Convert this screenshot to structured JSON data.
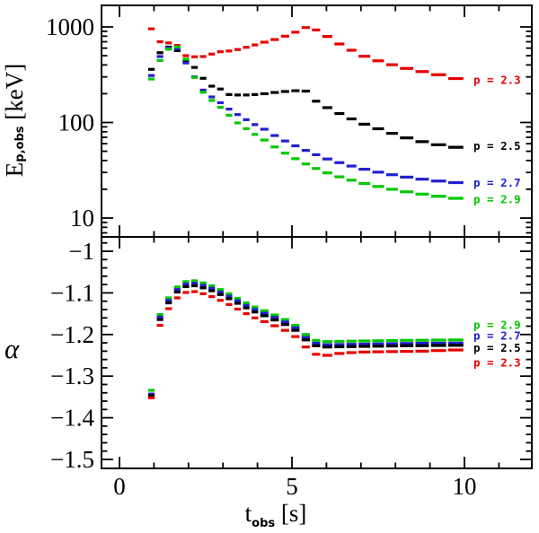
{
  "figure": {
    "background": "#ffffff",
    "frame_color": "#000000"
  },
  "colors": {
    "red": "#e80000",
    "black": "#000000",
    "blue": "#2020d0",
    "green": "#00c800"
  },
  "chart_data": {
    "type": "line",
    "style": "horizontal-dash-bins",
    "x_bins": [
      [
        0.8,
        1.05
      ],
      [
        1.05,
        1.3
      ],
      [
        1.3,
        1.55
      ],
      [
        1.55,
        1.8
      ],
      [
        1.8,
        2.05
      ],
      [
        2.05,
        2.3
      ],
      [
        2.3,
        2.55
      ],
      [
        2.55,
        2.8
      ],
      [
        2.8,
        3.05
      ],
      [
        3.05,
        3.3
      ],
      [
        3.3,
        3.55
      ],
      [
        3.55,
        3.8
      ],
      [
        3.8,
        4.05
      ],
      [
        4.05,
        4.35
      ],
      [
        4.35,
        4.65
      ],
      [
        4.65,
        4.95
      ],
      [
        4.95,
        5.25
      ],
      [
        5.25,
        5.55
      ],
      [
        5.55,
        5.85
      ],
      [
        5.85,
        6.2
      ],
      [
        6.2,
        6.55
      ],
      [
        6.55,
        6.9
      ],
      [
        6.9,
        7.3
      ],
      [
        7.3,
        7.7
      ],
      [
        7.7,
        8.1
      ],
      [
        8.1,
        8.55
      ],
      [
        8.55,
        9.0
      ],
      [
        9.0,
        9.5
      ],
      [
        9.5,
        10.0
      ]
    ],
    "x_axis": {
      "label": "t_obs [s]",
      "label_main": "t",
      "label_sub": "obs",
      "label_unit": " [s]",
      "lim": [
        -0.52,
        11.95
      ],
      "major_ticks": [
        0,
        5,
        10
      ],
      "major_tick_labels": [
        "0",
        "5",
        "10"
      ],
      "minor_ticks": [
        1,
        2,
        3,
        4,
        6,
        7,
        8,
        9,
        11
      ]
    },
    "panels": [
      {
        "name": "Ep_obs",
        "ylabel": "E_p,obs [keV]",
        "ylabel_main": "E",
        "ylabel_sub": "p,obs",
        "ylabel_unit": " [keV]",
        "yscale": "log",
        "ylim": [
          6.5,
          1680
        ],
        "major_ticks": [
          1000,
          100,
          10
        ],
        "major_tick_labels": [
          "1000",
          "100",
          "10"
        ],
        "legend_position": "right-inside",
        "series": [
          {
            "label": "p = 2.3",
            "color_key": "red",
            "label_value": 280,
            "values": [
              955,
              700,
              680,
              640,
              500,
              487,
              490,
              520,
              550,
              560,
              580,
              612,
              648,
              692,
              738,
              800,
              880,
              985,
              930,
              794,
              663,
              570,
              493,
              442,
              402,
              368,
              341,
              316,
              288
            ]
          },
          {
            "label": "p = 2.5",
            "color_key": "black",
            "label_value": 57,
            "values": [
              360,
              537,
              615,
              565,
              430,
              377,
              290,
              240,
              224,
              196,
              194,
              194,
              196,
              200,
              206,
              211,
              215,
              213,
              167,
              143,
              124,
              109,
              96,
              86,
              77,
              69,
              63,
              58.5,
              55
            ]
          },
          {
            "label": "p = 2.7",
            "color_key": "blue",
            "label_value": 23.5,
            "values": [
              310,
              490,
              600,
              592,
              420,
              300,
              218,
              185,
              161,
              138,
              121,
              107,
              95,
              85,
              73,
              64,
              57,
              51,
              46,
              41.5,
              38,
              35,
              32.4,
              30.2,
              28.4,
              26.8,
              25.5,
              24.4,
              23.5
            ]
          },
          {
            "label": "p = 2.9",
            "color_key": "green",
            "label_value": 15.7,
            "values": [
              285,
              446,
              585,
              618,
              460,
              296,
              207,
              170,
              144,
              119,
              99,
              86,
              75,
              65.5,
              55.5,
              47.8,
              41.8,
              36.8,
              33,
              29.7,
              27,
              24.9,
              23,
              21.4,
              20,
              18.8,
              17.8,
              16.9,
              16.1
            ]
          }
        ]
      },
      {
        "name": "alpha",
        "ylabel": "α",
        "yscale": "linear",
        "ylim": [
          -1.522,
          -0.966
        ],
        "major_ticks": [
          -1,
          -1.1,
          -1.2,
          -1.3,
          -1.4,
          -1.5
        ],
        "major_tick_labels": [
          "−1",
          "−1.1",
          "−1.2",
          "−1.3",
          "−1.4",
          "−1.5"
        ],
        "minor_tick_step": 0.02,
        "legend_position": "right-inside",
        "series": [
          {
            "label": "p = 2.9",
            "color_key": "green",
            "label_value": -1.177,
            "values": [
              -1.334,
              -1.152,
              -1.112,
              -1.086,
              -1.073,
              -1.071,
              -1.076,
              -1.083,
              -1.092,
              -1.102,
              -1.113,
              -1.124,
              -1.134,
              -1.143,
              -1.153,
              -1.164,
              -1.178,
              -1.2,
              -1.214,
              -1.217,
              -1.2165,
              -1.216,
              -1.2155,
              -1.215,
              -1.2145,
              -1.214,
              -1.2138,
              -1.2133,
              -1.213
            ]
          },
          {
            "label": "p = 2.7",
            "color_key": "blue",
            "label_value": -1.203,
            "values": [
              -1.343,
              -1.158,
              -1.118,
              -1.092,
              -1.079,
              -1.077,
              -1.082,
              -1.089,
              -1.098,
              -1.108,
              -1.119,
              -1.13,
              -1.14,
              -1.149,
              -1.159,
              -1.17,
              -1.184,
              -1.207,
              -1.221,
              -1.2245,
              -1.224,
              -1.2235,
              -1.223,
              -1.2225,
              -1.222,
              -1.2215,
              -1.221,
              -1.2208,
              -1.2205
            ]
          },
          {
            "label": "p = 2.5",
            "color_key": "black",
            "label_value": -1.232,
            "values": [
              -1.347,
              -1.164,
              -1.124,
              -1.098,
              -1.085,
              -1.083,
              -1.088,
              -1.095,
              -1.104,
              -1.114,
              -1.125,
              -1.136,
              -1.146,
              -1.155,
              -1.165,
              -1.176,
              -1.19,
              -1.213,
              -1.227,
              -1.23,
              -1.2295,
              -1.229,
              -1.2285,
              -1.228,
              -1.2275,
              -1.227,
              -1.2268,
              -1.2263,
              -1.226
            ]
          },
          {
            "label": "p = 2.3",
            "color_key": "red",
            "label_value": -1.267,
            "values": [
              -1.352,
              -1.178,
              -1.138,
              -1.112,
              -1.099,
              -1.097,
              -1.102,
              -1.109,
              -1.118,
              -1.128,
              -1.139,
              -1.15,
              -1.16,
              -1.169,
              -1.179,
              -1.19,
              -1.205,
              -1.23,
              -1.2475,
              -1.25,
              -1.2455,
              -1.2435,
              -1.242,
              -1.2415,
              -1.241,
              -1.2405,
              -1.24,
              -1.2385,
              -1.237
            ]
          }
        ]
      }
    ]
  }
}
